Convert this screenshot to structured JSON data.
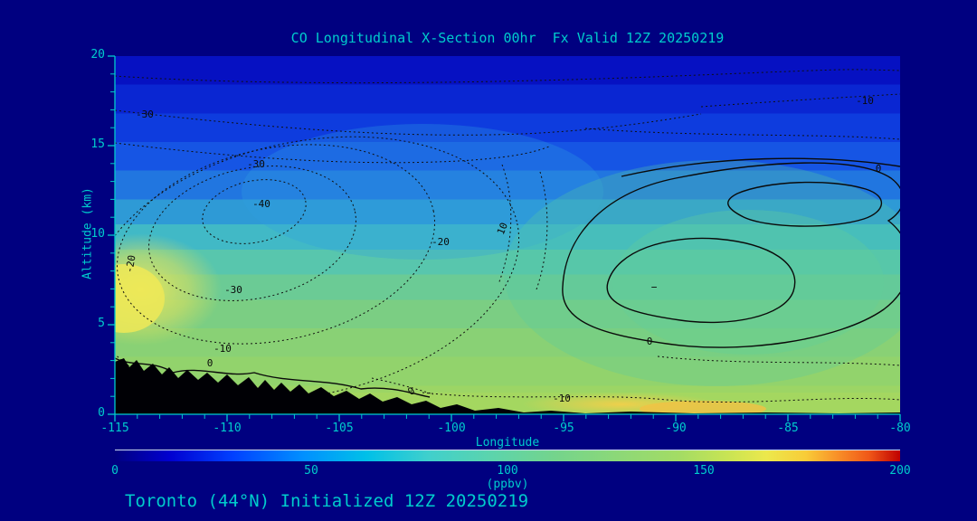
{
  "figure": {
    "bg_color": "#000080",
    "accent_color": "#00cccc",
    "title": "CO Longitudinal X-Section 00hr  Fx Valid 12Z 20250219",
    "footer": "Toronto (44°N) Initialized 12Z 20250219"
  },
  "axes": {
    "x_label": "Longitude",
    "y_label": "Altitude (km)",
    "x_ticks": [
      "-115",
      "-110",
      "-105",
      "-100",
      "-95",
      "-90",
      "-85",
      "-80"
    ],
    "y_ticks": [
      "20",
      "15",
      "10",
      "5",
      "0"
    ]
  },
  "colorbar": {
    "label": "(ppbv)",
    "ticks": [
      "0",
      "50",
      "100",
      "150",
      "200"
    ]
  },
  "contours": {
    "labels": [
      {
        "text": "-30"
      },
      {
        "text": "-10"
      },
      {
        "text": "-30"
      },
      {
        "text": "-40"
      },
      {
        "text": "-20"
      },
      {
        "text": "10"
      },
      {
        "text": "-20"
      },
      {
        "text": "-30"
      },
      {
        "text": "-10"
      },
      {
        "text": "0"
      },
      {
        "text": "0"
      },
      {
        "text": "-10"
      },
      {
        "text": "0"
      },
      {
        "text": "0"
      },
      {
        "text": "−"
      }
    ]
  },
  "chart_data": {
    "type": "heatmap",
    "title": "CO Longitudinal X-Section 00hr  Fx Valid 12Z 20250219",
    "xlabel": "Longitude",
    "ylabel": "Altitude (km)",
    "xlim": [
      -115,
      -80
    ],
    "ylim": [
      0,
      20
    ],
    "x_ticks": [
      -115,
      -110,
      -105,
      -100,
      -95,
      -90,
      -85,
      -80
    ],
    "y_ticks": [
      0,
      5,
      10,
      15,
      20
    ],
    "grid": false,
    "fill_units": "ppbv",
    "fill_scale": {
      "min": 0,
      "max": 200,
      "label": "(ppbv)",
      "ticks": [
        0,
        50,
        100,
        150,
        200
      ],
      "colors": [
        "#000080",
        "#0040ff",
        "#00c0e8",
        "#40d0cc",
        "#74d48c",
        "#a4dc64",
        "#ece84c",
        "#f89028",
        "#c00000"
      ]
    },
    "fill_profile_estimate_ppbv": {
      "altitude_km": [
        0,
        2,
        4,
        6,
        8,
        10,
        12,
        14,
        16,
        18,
        20
      ],
      "co_ppbv_west": [
        120,
        110,
        105,
        100,
        115,
        80,
        65,
        50,
        40,
        30,
        22
      ],
      "co_ppbv_east": [
        130,
        110,
        100,
        95,
        90,
        80,
        65,
        50,
        38,
        28,
        20
      ]
    },
    "notable_features": [
      {
        "feature": "yellow CO maximum ~115-130 ppbv",
        "longitude": -115,
        "altitude_km": 7
      },
      {
        "feature": "warm yellow-orange band near surface",
        "longitude_range": [
          -97,
          -88
        ],
        "altitude_km": 0.5
      },
      {
        "feature": "black terrain silhouette, peaks ~2.5 km",
        "longitude_range": [
          -115,
          -99
        ]
      }
    ],
    "overlay_contours": {
      "line_style": "black; negative levels dotted, zero/positive solid",
      "levels_labeled": [
        -40,
        -30,
        -20,
        -10,
        0,
        10
      ],
      "features": [
        {
          "label": -40,
          "center_longitude": -108.5,
          "center_altitude_km": 11.5,
          "type": "dotted closed minimum (west)"
        },
        {
          "label": 0,
          "center_longitude": -88.5,
          "center_altitude_km": 7.5,
          "type": "solid closed contour with inner loops (east)"
        },
        {
          "label": 0,
          "center_longitude": -84,
          "center_altitude_km": 12.5,
          "type": "solid closed loop (upper east)"
        }
      ]
    }
  }
}
